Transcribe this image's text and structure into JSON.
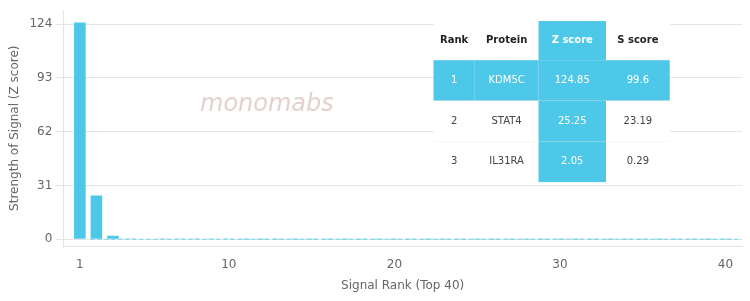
{
  "chart_data": {
    "type": "bar",
    "x": [
      1,
      2,
      3,
      4,
      5,
      6,
      7,
      8,
      9,
      10,
      11,
      12,
      13,
      14,
      15,
      16,
      17,
      18,
      19,
      20,
      21,
      22,
      23,
      24,
      25,
      26,
      27,
      28,
      29,
      30,
      31,
      32,
      33,
      34,
      35,
      36,
      37,
      38,
      39,
      40
    ],
    "values": [
      124.85,
      25.25,
      2.05,
      0.5,
      0.3,
      0.2,
      0.15,
      0.12,
      0.1,
      0.08,
      0.07,
      0.06,
      0.05,
      0.05,
      0.04,
      0.04,
      0.03,
      0.03,
      0.03,
      0.02,
      0.02,
      0.02,
      0.02,
      0.02,
      0.01,
      0.01,
      0.01,
      0.01,
      0.01,
      0.01,
      0.01,
      0.01,
      0.01,
      0.01,
      0.01,
      0.01,
      0.01,
      0.01,
      0.01,
      0.01
    ],
    "color": "#4DC8E8",
    "xlabel": "Signal Rank (Top 40)",
    "ylabel": "Strength of Signal (Z score)",
    "xlim": [
      0,
      41
    ],
    "xticks": [
      1,
      10,
      20,
      30,
      40
    ],
    "ylim": [
      -4,
      132
    ],
    "yticks": [
      0,
      31,
      62,
      93,
      124
    ],
    "grid": "y",
    "hlines": [
      {
        "y": 0,
        "color": "#6ED4EE",
        "line_style": "dashed"
      }
    ],
    "annotations": [
      {
        "text": "monomabs",
        "color": "#E5D0D0"
      }
    ],
    "table": {
      "headers": [
        "Rank",
        "Protein",
        "Z score",
        "S score"
      ],
      "rows": [
        [
          "1",
          "KDM5C",
          "124.85",
          "99.6"
        ],
        [
          "2",
          "STAT4",
          "25.25",
          "23.19"
        ],
        [
          "3",
          "IL31RA",
          "2.05",
          "0.29"
        ]
      ],
      "highlight_color": "#4DC8E8",
      "highlight_text_color": "#FFFFFF",
      "text_color": "#444444",
      "header_text_color": "#222222"
    }
  }
}
